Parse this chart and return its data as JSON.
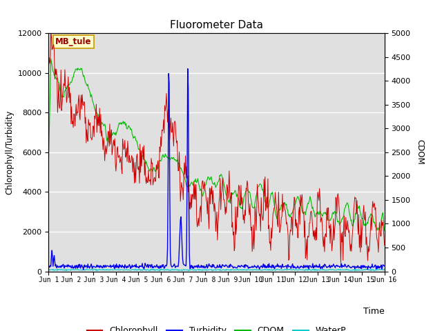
{
  "title": "Fluorometer Data",
  "xlabel": "Time",
  "ylabel_left": "Chlorophyll/Turbidity",
  "ylabel_right": "CDOM",
  "ylim_left": [
    0,
    12000
  ],
  "ylim_right": [
    0,
    5000
  ],
  "xlim": [
    1,
    16
  ],
  "xtick_positions": [
    1,
    2,
    3,
    4,
    5,
    6,
    7,
    8,
    9,
    10,
    11,
    12,
    13,
    14,
    15,
    16
  ],
  "xtick_labels": [
    "Jun 1",
    "Jun 2",
    "Jun 3",
    "Jun 4",
    "Jun 5",
    "Jun 6",
    "Jun 7",
    "Jun 8",
    "Jun 9",
    "Jun 10",
    "Jun 11",
    "Jun 12",
    "Jun 13",
    "Jun 14",
    "Jun 15",
    "Jun 16"
  ],
  "colors": {
    "chlorophyll": "#cc0000",
    "turbidity": "#0000ee",
    "cdom": "#00bb00",
    "waterp": "#00cccc"
  },
  "annotation_text": "MB_tule",
  "annotation_facecolor": "#ffffcc",
  "annotation_edgecolor": "#cc9900",
  "background_color": "#e0e0e0",
  "grid_color": "#ffffff",
  "fig_facecolor": "#ffffff",
  "legend_labels": [
    "Chlorophyll",
    "Turbidity",
    "CDOM",
    "WaterP"
  ]
}
